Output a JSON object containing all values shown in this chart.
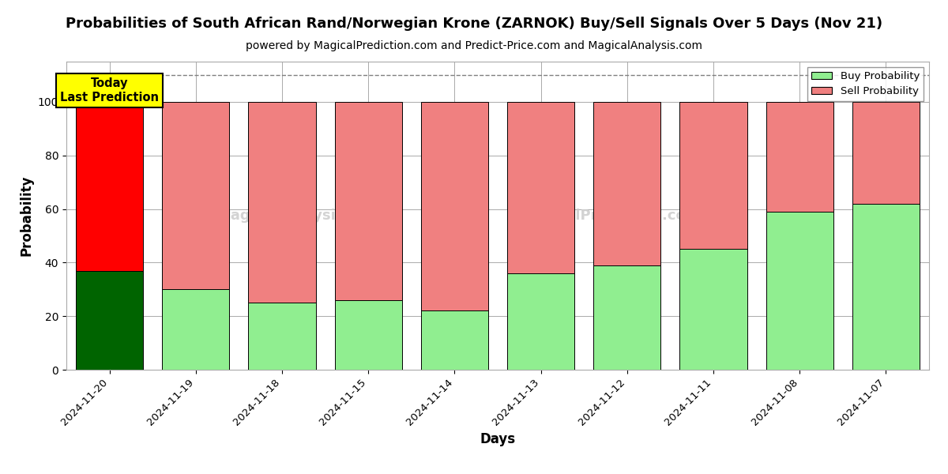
{
  "title": "Probabilities of South African Rand/Norwegian Krone (ZARNOK) Buy/Sell Signals Over 5 Days (Nov 21)",
  "subtitle": "powered by MagicalPrediction.com and Predict-Price.com and MagicalAnalysis.com",
  "xlabel": "Days",
  "ylabel": "Probability",
  "categories": [
    "2024-11-20",
    "2024-11-19",
    "2024-11-18",
    "2024-11-15",
    "2024-11-14",
    "2024-11-13",
    "2024-11-12",
    "2024-11-11",
    "2024-11-08",
    "2024-11-07"
  ],
  "buy_values": [
    37,
    30,
    25,
    26,
    22,
    36,
    39,
    45,
    59,
    62
  ],
  "sell_values": [
    63,
    70,
    75,
    74,
    78,
    64,
    61,
    55,
    41,
    38
  ],
  "buy_color_today": "#006400",
  "sell_color_today": "#ff0000",
  "buy_color": "#90EE90",
  "sell_color": "#F08080",
  "bar_edge_color": "#000000",
  "dashed_line_y": 110,
  "ylim": [
    0,
    115
  ],
  "yticks": [
    0,
    20,
    40,
    60,
    80,
    100
  ],
  "legend_buy": "Buy Probability",
  "legend_sell": "Sell Probability",
  "annotation_text": "Today\nLast Prediction",
  "background_color": "#ffffff",
  "grid_color": "#aaaaaa",
  "title_fontsize": 13,
  "subtitle_fontsize": 10,
  "label_fontsize": 12,
  "tick_fontsize": 9.5
}
